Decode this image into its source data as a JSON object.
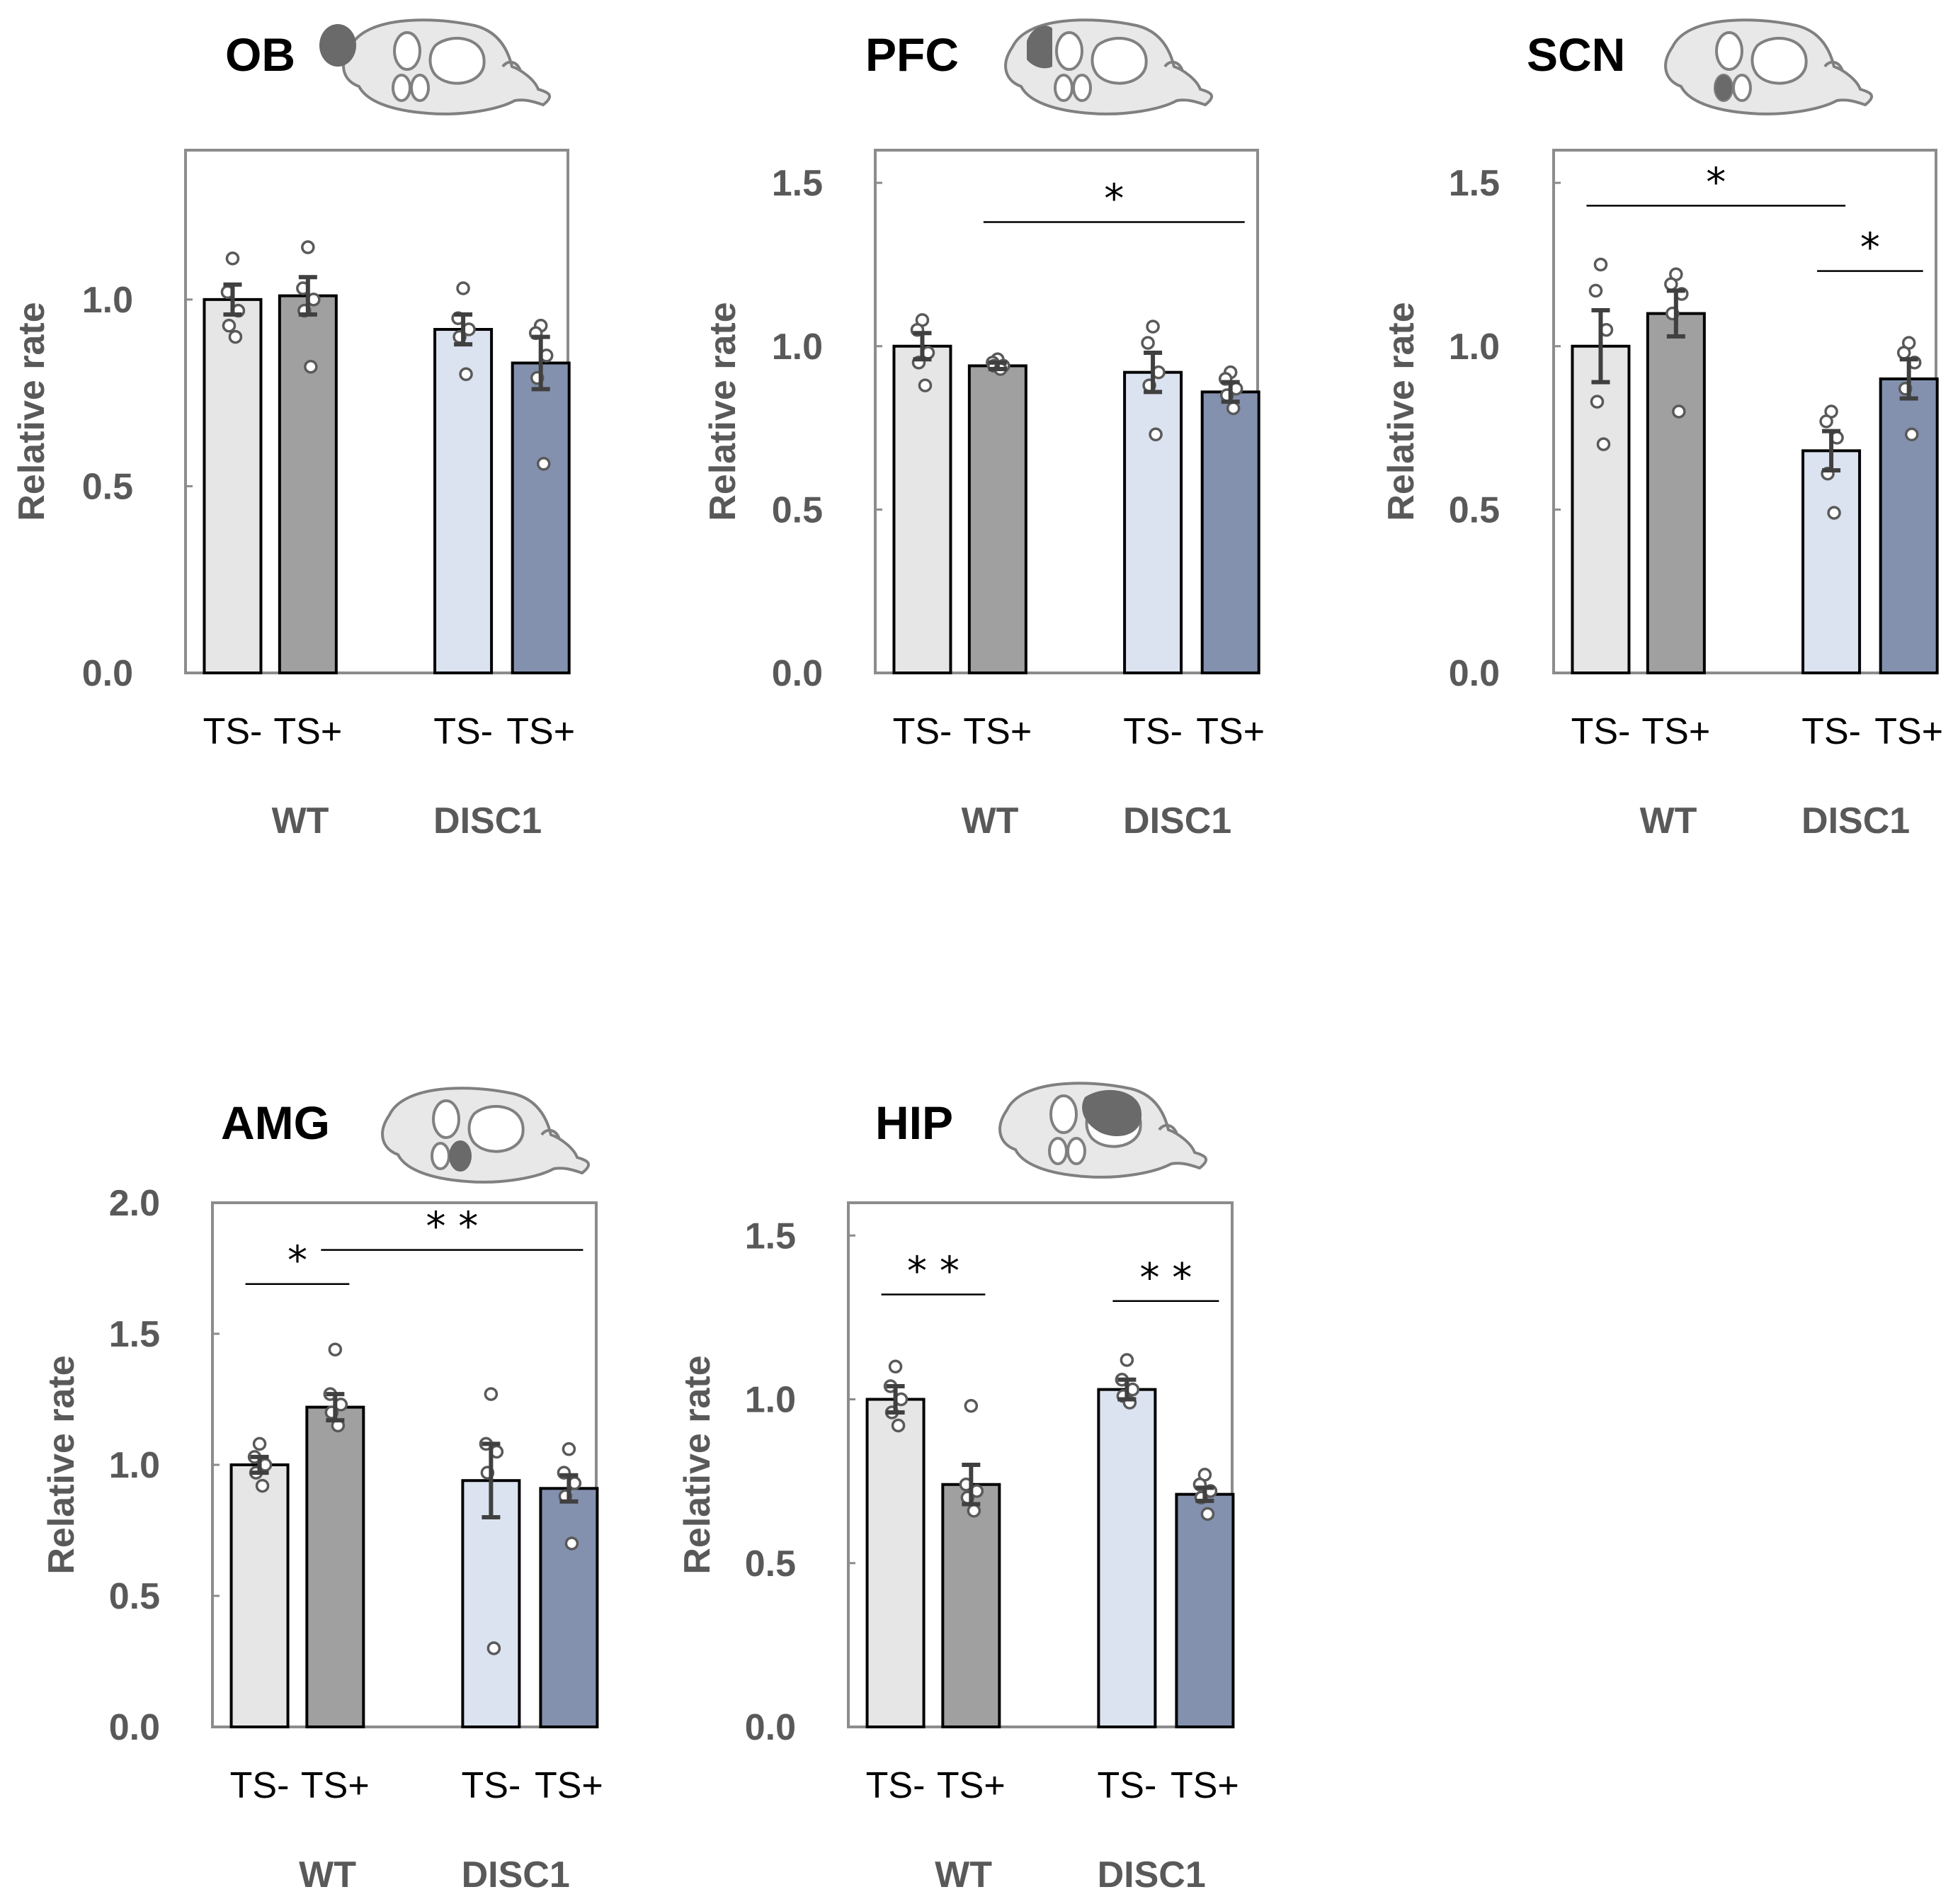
{
  "colors": {
    "wt_ts_minus": "#e6e6e6",
    "wt_ts_plus": "#a0a0a0",
    "disc1_ts_minus": "#dbe2f0",
    "disc1_ts_plus": "#8391ae",
    "bar_edge": "#000000",
    "error_bar": "#404040",
    "dot_edge": "#595959",
    "frame": "#8c8c8c",
    "brain_fill": "#e8e8e8",
    "brain_stroke": "#808080",
    "brain_region": "#6a6a6a"
  },
  "chart_data": [
    {
      "type": "bar",
      "title": "OB",
      "brain_region_icon": "olfactory-bulb",
      "ylabel": "Relative rate",
      "ylim": [
        0,
        1.4
      ],
      "yticks": [
        "0.0",
        "0.5",
        "1.0"
      ],
      "categories": [
        "TS-",
        "TS+",
        "TS-",
        "TS+"
      ],
      "groups": [
        "WT",
        "DISC1"
      ],
      "values": [
        1.0,
        1.01,
        0.92,
        0.83
      ],
      "errors": [
        0.04,
        0.05,
        0.04,
        0.07
      ],
      "points": [
        [
          1.11,
          1.02,
          0.97,
          0.93,
          0.9
        ],
        [
          1.14,
          1.03,
          1.0,
          0.97,
          0.82
        ],
        [
          1.03,
          0.95,
          0.92,
          0.9,
          0.8
        ],
        [
          0.93,
          0.91,
          0.85,
          0.79,
          0.56
        ]
      ],
      "significance": []
    },
    {
      "type": "bar",
      "title": "PFC",
      "brain_region_icon": "prefrontal-cortex",
      "ylabel": "Relative rate",
      "ylim": [
        0,
        1.6
      ],
      "yticks": [
        "0.0",
        "0.5",
        "1.0",
        "1.5"
      ],
      "categories": [
        "TS-",
        "TS+",
        "TS-",
        "TS+"
      ],
      "groups": [
        "WT",
        "DISC1"
      ],
      "values": [
        1.0,
        0.94,
        0.92,
        0.86
      ],
      "errors": [
        0.04,
        0.01,
        0.06,
        0.03
      ],
      "points": [
        [
          1.08,
          1.05,
          0.98,
          0.95,
          0.88
        ],
        [
          0.96,
          0.95,
          0.94,
          0.94,
          0.93
        ],
        [
          1.06,
          1.01,
          0.92,
          0.88,
          0.73
        ],
        [
          0.92,
          0.9,
          0.87,
          0.85,
          0.81
        ]
      ],
      "significance": [
        {
          "from": 1,
          "to": 3,
          "value": 1.38,
          "label": "*"
        }
      ]
    },
    {
      "type": "bar",
      "title": "SCN",
      "brain_region_icon": "suprachiasmatic-nucleus",
      "ylabel": "Relative rate",
      "ylim": [
        0,
        1.6
      ],
      "yticks": [
        "0.0",
        "0.5",
        "1.0",
        "1.5"
      ],
      "categories": [
        "TS-",
        "TS+",
        "TS-",
        "TS+"
      ],
      "groups": [
        "WT",
        "DISC1"
      ],
      "values": [
        1.0,
        1.1,
        0.68,
        0.9
      ],
      "errors": [
        0.11,
        0.07,
        0.06,
        0.06
      ],
      "points": [
        [
          1.25,
          1.17,
          1.05,
          0.83,
          0.7
        ],
        [
          1.22,
          1.19,
          1.16,
          1.1,
          0.8
        ],
        [
          0.8,
          0.77,
          0.72,
          0.61,
          0.49
        ],
        [
          1.01,
          0.98,
          0.95,
          0.87,
          0.73
        ]
      ],
      "significance": [
        {
          "from": 0,
          "to": 2,
          "value": 1.43,
          "label": "*"
        },
        {
          "from": 2,
          "to": 3,
          "value": 1.23,
          "label": "*"
        }
      ]
    },
    {
      "type": "bar",
      "title": "AMG",
      "brain_region_icon": "amygdala",
      "ylabel": "Relative rate",
      "ylim": [
        0,
        2.0
      ],
      "yticks": [
        "0.0",
        "0.5",
        "1.0",
        "1.5",
        "2.0"
      ],
      "categories": [
        "TS-",
        "TS+",
        "TS-",
        "TS+"
      ],
      "groups": [
        "WT",
        "DISC1"
      ],
      "values": [
        1.0,
        1.22,
        0.94,
        0.91
      ],
      "errors": [
        0.03,
        0.05,
        0.14,
        0.05
      ],
      "points": [
        [
          1.08,
          1.03,
          1.0,
          0.97,
          0.92
        ],
        [
          1.44,
          1.27,
          1.23,
          1.2,
          1.15
        ],
        [
          1.27,
          1.08,
          1.05,
          0.97,
          0.3
        ],
        [
          1.06,
          0.97,
          0.93,
          0.88,
          0.7
        ]
      ],
      "significance": [
        {
          "from": 0,
          "to": 1,
          "value": 1.69,
          "label": "*"
        },
        {
          "from": 1,
          "to": 3,
          "value": 1.82,
          "label": "* *"
        }
      ]
    },
    {
      "type": "bar",
      "title": "HIP",
      "brain_region_icon": "hippocampus",
      "ylabel": "Relative rate",
      "ylim": [
        0,
        1.6
      ],
      "yticks": [
        "0.0",
        "0.5",
        "1.0",
        "1.5"
      ],
      "categories": [
        "TS-",
        "TS+",
        "TS-",
        "TS+"
      ],
      "groups": [
        "WT",
        "DISC1"
      ],
      "values": [
        1.0,
        0.74,
        1.03,
        0.71
      ],
      "errors": [
        0.04,
        0.06,
        0.03,
        0.02
      ],
      "points": [
        [
          1.1,
          1.04,
          1.0,
          0.96,
          0.92
        ],
        [
          0.98,
          0.74,
          0.72,
          0.7,
          0.66
        ],
        [
          1.12,
          1.06,
          1.03,
          1.01,
          0.99
        ],
        [
          0.77,
          0.74,
          0.72,
          0.7,
          0.65
        ]
      ],
      "significance": [
        {
          "from": 0,
          "to": 1,
          "value": 1.32,
          "label": "* *"
        },
        {
          "from": 2,
          "to": 3,
          "value": 1.3,
          "label": "* *"
        }
      ]
    }
  ]
}
